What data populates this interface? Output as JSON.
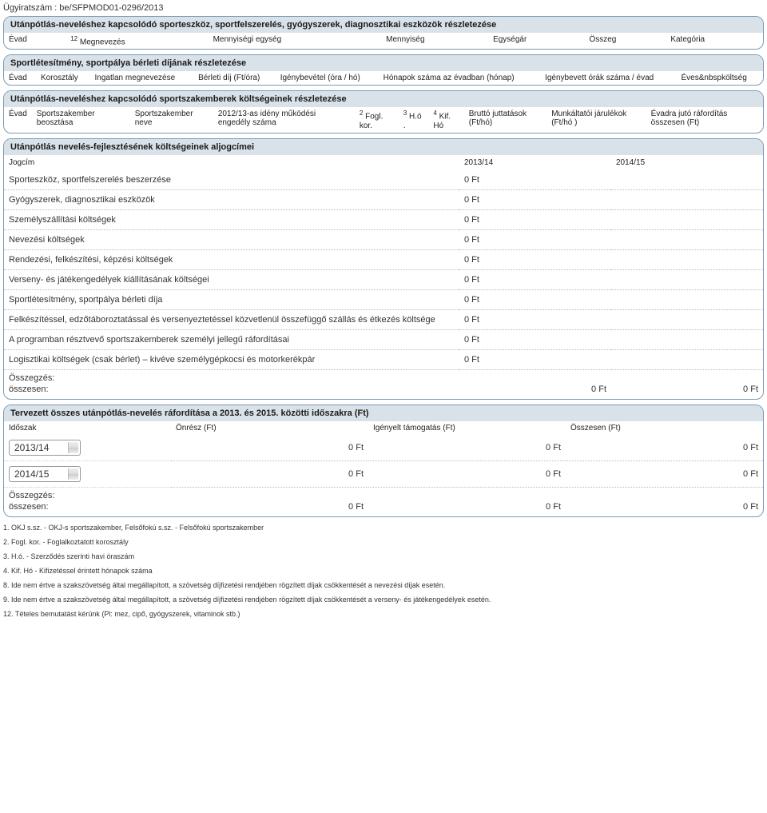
{
  "case_number": "Ügyiratszám : be/SFPMOD01-0296/2013",
  "panel1": {
    "title": "Utánpótlás-neveléshez kapcsolódó sporteszköz, sportfelszerelés, gyógyszerek, diagnosztikai eszközök részletezése",
    "headers": [
      "Évad",
      "Megnevezés",
      "Mennyiségi egység",
      "Mennyiség",
      "Egységár",
      "Összeg",
      "Kategória"
    ],
    "sup": "12"
  },
  "panel2": {
    "title": "Sportlétesítmény, sportpálya bérleti díjának részletezése",
    "headers": [
      "Évad",
      "Korosztály",
      "Ingatlan megnevezése",
      "Bérleti díj (Ft/óra)",
      "Igénybevétel (óra / hó)",
      "Hónapok száma az évadban (hónap)",
      "Igénybevett órák száma / évad",
      "Éves&nbspköltség"
    ]
  },
  "panel3": {
    "title": "Utánpótlás-neveléshez kapcsolódó sportszakemberek költségeinek részletezése",
    "headers": [
      "Évad",
      "Sportszakember beosztása",
      "Sportszakember neve",
      "2012/13-as idény működési engedély száma",
      "Fogl. kor.",
      "H.ó .",
      "Kif. Hó",
      "Bruttó juttatások (Ft/hó)",
      "Munkáltatói járulékok (Ft/hó )",
      "Évadra jutó ráfordítás összesen (Ft)"
    ],
    "sups": [
      "2",
      "3",
      "4"
    ]
  },
  "panel4": {
    "title": "Utánpótlás nevelés-fejlesztésének költségeinek aljogcímei",
    "col_jogcim": "Jogcím",
    "col_y1": "2013/14",
    "col_y2": "2014/15",
    "rows": [
      {
        "label": "Sporteszköz, sportfelszerelés beszerzése",
        "v1": "0 Ft",
        "v2": ""
      },
      {
        "label": "Gyógyszerek, diagnosztikai eszközök",
        "v1": "0 Ft",
        "v2": ""
      },
      {
        "label": "Személyszállítási költségek",
        "v1": "0 Ft",
        "v2": ""
      },
      {
        "label": "Nevezési költségek",
        "v1": "0 Ft",
        "v2": ""
      },
      {
        "label": "Rendezési, felkészítési, képzési költségek",
        "v1": "0 Ft",
        "v2": ""
      },
      {
        "label": "Verseny- és játékengedélyek kiállításának költségei",
        "v1": "0 Ft",
        "v2": ""
      },
      {
        "label": "Sportlétesítmény, sportpálya bérleti díja",
        "v1": "0 Ft",
        "v2": ""
      },
      {
        "label": "Felkészítéssel, edzőtáboroztatással és versenyeztetéssel közvetlenül összefüggő szállás és étkezés költsége",
        "v1": "0 Ft",
        "v2": ""
      },
      {
        "label": "A programban résztvevő sportszakemberek személyi jellegű ráfordításai",
        "v1": "0 Ft",
        "v2": ""
      },
      {
        "label": "Logisztikai költségek (csak bérlet) – kivéve személygépkocsi és motorkerékpár",
        "v1": "0 Ft",
        "v2": ""
      }
    ],
    "sum_label1": "Összegzés:",
    "sum_label2": "összesen:",
    "sum_v1": "0 Ft",
    "sum_v2": "0 Ft"
  },
  "panel5": {
    "title": "Tervezett összes utánpótlás-nevelés ráfordítása a 2013. és 2015. közötti időszakra (Ft)",
    "headers": [
      "Időszak",
      "Önrész (Ft)",
      "Igényelt támogatás (Ft)",
      "Összesen (Ft)"
    ],
    "rows": [
      {
        "period": "2013/14",
        "onresz": "0 Ft",
        "igeny": "0 Ft",
        "ossz": "0 Ft"
      },
      {
        "period": "2014/15",
        "onresz": "0 Ft",
        "igeny": "0 Ft",
        "ossz": "0 Ft"
      }
    ],
    "sum_label1": "Összegzés:",
    "sum_label2": "összesen:",
    "sum_onresz": "0 Ft",
    "sum_igeny": "0 Ft",
    "sum_ossz": "0 Ft"
  },
  "footnotes": [
    "1. OKJ s.sz. - OKJ-s sportszakember, Felsőfokú s.sz. - Felsőfokú sportszakember",
    "2. Fogl. kor. - Foglalkoztatott korosztály",
    "3. H.ó. - Szerződés szerinti havi óraszám",
    "4. Kif. Hó - Kifizetéssel érintett hónapok száma",
    "8. Ide nem értve a szakszövetség által megállapított, a szövetség díjfizetési rendjében rögzített díjak csökkentését a nevezési díjak esetén.",
    "9. Ide nem értve a szakszövetség által megállapított, a szövetség díjfizetési rendjében rögzített díjak csökkentését a verseny- és játékengedélyek esetén.",
    "12. Tételes bemutatást kérünk (Pl: mez, cipő, gyógyszerek, vitaminok stb.)"
  ],
  "colors": {
    "panel_border": "#7a9ab5",
    "panel_header_bg": "#d9e2e9",
    "text": "#333333",
    "dotted": "#bbbbbb"
  }
}
